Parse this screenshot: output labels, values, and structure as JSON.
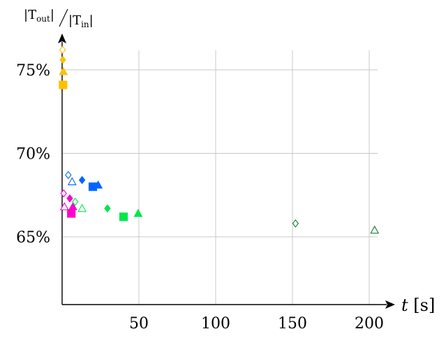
{
  "chart_data": {
    "type": "scatter",
    "title": "",
    "xlabel": "t [s]",
    "ylabel": "|T_out| / |T_in|",
    "xlim": [
      0,
      215
    ],
    "ylim": [
      61,
      76.5
    ],
    "x_ticks": [
      50,
      100,
      150,
      200
    ],
    "x_tick_labels": [
      "50",
      "100",
      "150",
      "200"
    ],
    "y_ticks": [
      65,
      70,
      75
    ],
    "y_tick_labels": [
      "65%",
      "70%",
      "75%"
    ],
    "grid": "vertical and horizontal at ticks",
    "legend": "none",
    "series": [
      {
        "color": "#ffc000",
        "points": [
          {
            "x": 0.3,
            "y": 76.2,
            "marker": "diamond-open"
          },
          {
            "x": 0.5,
            "y": 75.6,
            "marker": "diamond"
          },
          {
            "x": 0.8,
            "y": 74.9,
            "marker": "triangle"
          },
          {
            "x": 0.6,
            "y": 74.1,
            "marker": "square"
          }
        ]
      },
      {
        "color": "#0066ff",
        "points": [
          {
            "x": 4,
            "y": 68.7,
            "marker": "diamond-open"
          },
          {
            "x": 6.5,
            "y": 68.3,
            "marker": "triangle-open"
          },
          {
            "x": 13,
            "y": 68.4,
            "marker": "diamond"
          },
          {
            "x": 20,
            "y": 68.0,
            "marker": "square"
          },
          {
            "x": 23.5,
            "y": 68.1,
            "marker": "triangle"
          }
        ]
      },
      {
        "color": "#ff00cc",
        "points": [
          {
            "x": 1,
            "y": 67.6,
            "marker": "diamond-open"
          },
          {
            "x": 1.5,
            "y": 66.8,
            "marker": "triangle-open"
          },
          {
            "x": 5,
            "y": 67.3,
            "marker": "diamond"
          },
          {
            "x": 7,
            "y": 66.8,
            "marker": "triangle"
          },
          {
            "x": 6,
            "y": 66.4,
            "marker": "square"
          }
        ]
      },
      {
        "color": "#00e64d",
        "points": [
          {
            "x": 8.5,
            "y": 67.1,
            "marker": "diamond-open"
          },
          {
            "x": 13,
            "y": 66.7,
            "marker": "triangle-open"
          },
          {
            "x": 29.5,
            "y": 66.7,
            "marker": "diamond"
          },
          {
            "x": 40,
            "y": 66.2,
            "marker": "square"
          },
          {
            "x": 49.5,
            "y": 66.4,
            "marker": "triangle"
          }
        ]
      },
      {
        "color": "#1a7a3a",
        "points": [
          {
            "x": 152,
            "y": 65.8,
            "marker": "diamond-open"
          },
          {
            "x": 203.5,
            "y": 65.4,
            "marker": "triangle-open"
          }
        ]
      }
    ]
  }
}
